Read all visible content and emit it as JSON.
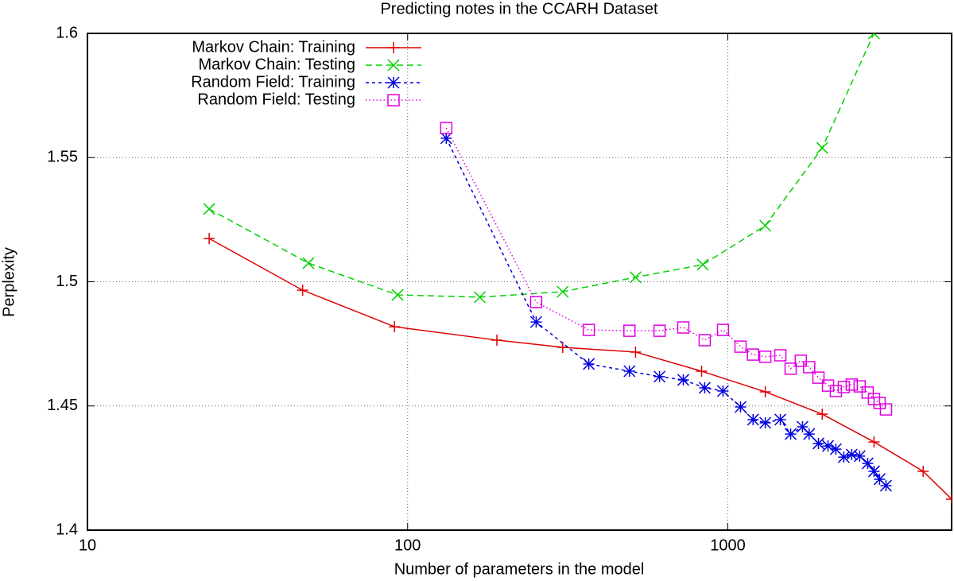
{
  "chart_data": {
    "type": "line",
    "title": "Predicting notes in the CCARH Dataset",
    "x_label": "Number of parameters in the model",
    "y_label": "Perplexity",
    "xscale": "log",
    "xlim": [
      10,
      5000
    ],
    "ylim": [
      1.4,
      1.6
    ],
    "xticks": [
      10,
      100,
      1000
    ],
    "yticks": [
      1.4,
      1.45,
      1.5,
      1.55,
      1.6
    ],
    "grid": true,
    "legend": "top-left",
    "series": [
      {
        "name": "Markov Chain: Training",
        "color": "#e00000",
        "marker": "plus",
        "dash": "solid",
        "x": [
          24,
          47,
          91,
          190,
          305,
          515,
          828,
          1309,
          1972,
          2862,
          4074,
          5000
        ],
        "values": [
          1.5174,
          1.4966,
          1.4819,
          1.4765,
          1.4736,
          1.4717,
          1.464,
          1.4557,
          1.4467,
          1.4355,
          1.4237,
          1.4125
        ]
      },
      {
        "name": "Markov Chain: Testing",
        "color": "#00d000",
        "marker": "cross",
        "dash": "dashed",
        "x": [
          24,
          49,
          93,
          168,
          305,
          515,
          835,
          1309,
          1972,
          2860
        ],
        "values": [
          1.5293,
          1.5075,
          1.4947,
          1.4938,
          1.496,
          1.5018,
          1.5069,
          1.5226,
          1.5539,
          1.6
        ]
      },
      {
        "name": "Random Field: Training",
        "color": "#0000e0",
        "marker": "star",
        "dash": "short",
        "x": [
          132,
          252,
          368,
          493,
          612,
          726,
          847,
          966,
          1096,
          1199,
          1309,
          1459,
          1571,
          1711,
          1795,
          1919,
          2056,
          2175,
          2303,
          2438,
          2581,
          2734,
          2862,
          2979,
          3119
        ],
        "values": [
          1.5578,
          1.4838,
          1.4669,
          1.464,
          1.4618,
          1.4605,
          1.4573,
          1.456,
          1.4496,
          1.4445,
          1.4432,
          1.4445,
          1.4387,
          1.4416,
          1.4387,
          1.4349,
          1.4339,
          1.4326,
          1.4294,
          1.4304,
          1.4298,
          1.4269,
          1.4237,
          1.4205,
          1.4179
        ]
      },
      {
        "name": "Random Field: Testing",
        "color": "#e000e0",
        "marker": "square",
        "dash": "dotted",
        "x": [
          132,
          252,
          368,
          493,
          612,
          726,
          847,
          966,
          1096,
          1199,
          1309,
          1459,
          1571,
          1690,
          1795,
          1919,
          2056,
          2175,
          2303,
          2438,
          2581,
          2734,
          2862,
          2979,
          3119
        ],
        "values": [
          1.5619,
          1.4918,
          1.4806,
          1.4803,
          1.4803,
          1.4816,
          1.4765,
          1.4806,
          1.4739,
          1.4707,
          1.4698,
          1.4704,
          1.465,
          1.4682,
          1.4656,
          1.4614,
          1.4582,
          1.456,
          1.4576,
          1.4586,
          1.4579,
          1.4554,
          1.4528,
          1.4512,
          1.4486
        ]
      }
    ]
  }
}
